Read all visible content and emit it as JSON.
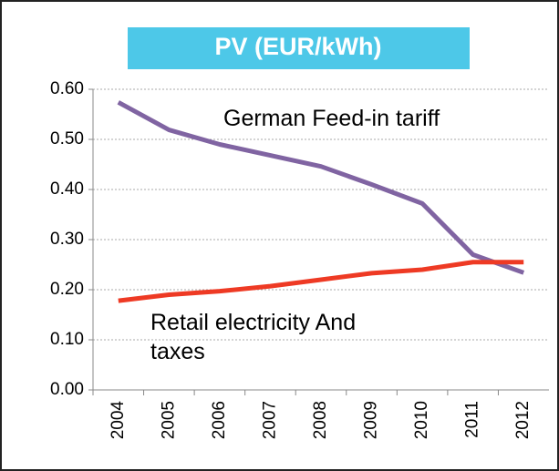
{
  "chart_data": {
    "type": "line",
    "title": "PV (EUR/kWh)",
    "categories": [
      "2004",
      "2005",
      "2006",
      "2007",
      "2008",
      "2009",
      "2010",
      "2011",
      "2012"
    ],
    "series": [
      {
        "name": "German Feed-in tariff",
        "color": "#8064a2",
        "values": [
          0.574,
          0.519,
          0.49,
          0.468,
          0.446,
          0.41,
          0.372,
          0.27,
          0.234
        ]
      },
      {
        "name": "Retail electricity And taxes",
        "color": "#ee3a24",
        "values": [
          0.178,
          0.19,
          0.197,
          0.207,
          0.22,
          0.233,
          0.24,
          0.255,
          0.255
        ]
      }
    ],
    "ylim": [
      0,
      0.6
    ],
    "yticks": [
      {
        "value": 0,
        "label": "0.00"
      },
      {
        "value": 0.1,
        "label": "0.10"
      },
      {
        "value": 0.2,
        "label": "0.20"
      },
      {
        "value": 0.3,
        "label": "0.30"
      },
      {
        "value": 0.4,
        "label": "0.40"
      },
      {
        "value": 0.5,
        "label": "0.50"
      },
      {
        "value": 0.6,
        "label": "0.60"
      }
    ],
    "grid": true,
    "title_color": "#4dc8e8"
  }
}
